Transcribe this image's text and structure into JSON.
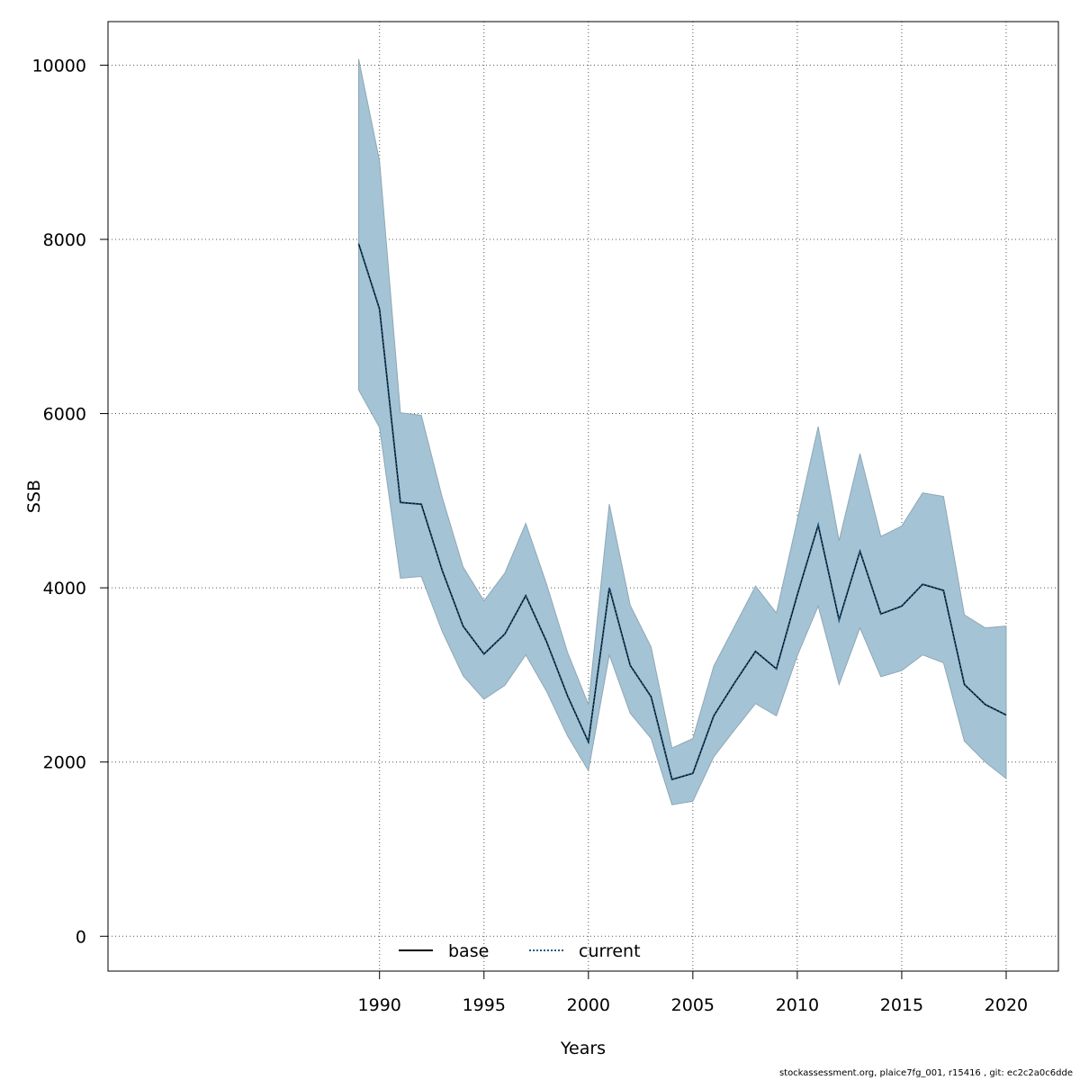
{
  "chart_data": {
    "type": "line",
    "xlabel": "Years",
    "ylabel": "SSB",
    "xlim": [
      1977,
      2022.5
    ],
    "ylim": [
      -400,
      10500
    ],
    "x_ticks": [
      1990,
      1995,
      2000,
      2005,
      2010,
      2015,
      2020
    ],
    "y_ticks": [
      0,
      2000,
      4000,
      6000,
      8000,
      10000
    ],
    "grid": true,
    "legend_position": "bottom-center",
    "x": [
      1989,
      1990,
      1991,
      1992,
      1993,
      1994,
      1995,
      1996,
      1997,
      1998,
      1999,
      2000,
      2001,
      2002,
      2003,
      2004,
      2005,
      2006,
      2007,
      2008,
      2009,
      2010,
      2011,
      2012,
      2013,
      2014,
      2015,
      2016,
      2017,
      2018,
      2019,
      2020
    ],
    "series": [
      {
        "name": "base",
        "style": "solid",
        "color": "#000000",
        "values": [
          7950,
          7200,
          4980,
          4960,
          4200,
          3560,
          3240,
          3470,
          3910,
          3380,
          2760,
          2230,
          4000,
          3110,
          2750,
          1800,
          1870,
          2530,
          2910,
          3270,
          3070,
          3920,
          4720,
          3630,
          4420,
          3700,
          3790,
          4040,
          3970,
          2890,
          2660,
          2540
        ]
      },
      {
        "name": "current",
        "style": "dotted",
        "color": "#1f5b85",
        "values": [
          7950,
          7200,
          4980,
          4960,
          4200,
          3560,
          3240,
          3470,
          3910,
          3380,
          2760,
          2230,
          4000,
          3110,
          2750,
          1800,
          1870,
          2530,
          2910,
          3270,
          3070,
          3920,
          4720,
          3630,
          4420,
          3700,
          3790,
          4040,
          3970,
          2890,
          2660,
          2540
        ]
      }
    ],
    "band": {
      "color": "#a4c3d4",
      "edge": "#8ea8b6",
      "lower": [
        6270,
        5840,
        4110,
        4130,
        3500,
        2990,
        2720,
        2880,
        3230,
        2810,
        2300,
        1900,
        3230,
        2560,
        2270,
        1510,
        1550,
        2060,
        2370,
        2670,
        2530,
        3220,
        3790,
        2890,
        3540,
        2980,
        3050,
        3230,
        3140,
        2240,
        2000,
        1810
      ],
      "upper": [
        10070,
        8900,
        6010,
        5980,
        5040,
        4240,
        3850,
        4170,
        4740,
        4040,
        3260,
        2660,
        4960,
        3800,
        3320,
        2160,
        2270,
        3100,
        3560,
        4020,
        3710,
        4780,
        5850,
        4540,
        5540,
        4590,
        4710,
        5090,
        5050,
        3690,
        3540,
        3560
      ]
    }
  },
  "footer": "stockassessment.org, plaice7fg_001, r15416 , git: ec2c2a0c6dde"
}
